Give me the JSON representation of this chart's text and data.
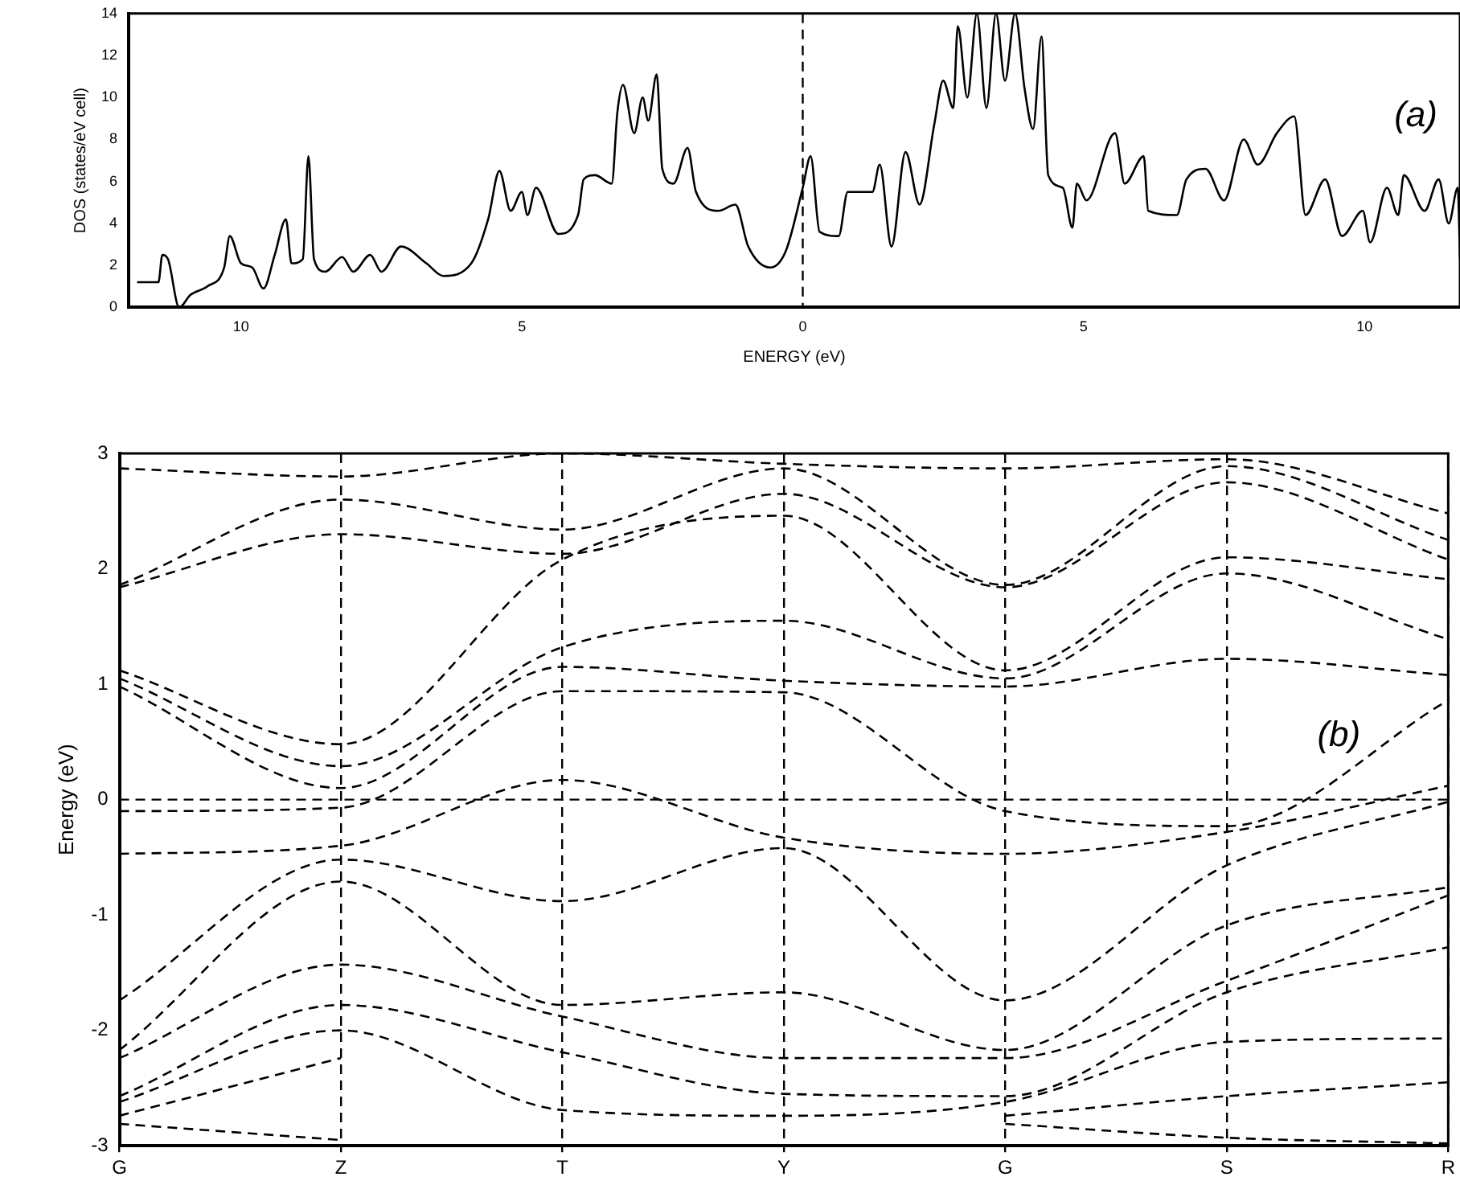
{
  "chart_data": [
    {
      "type": "line",
      "xlabel": "ENERGY (eV)",
      "ylabel": "DOS (states/eV cell)",
      "annotations": [
        "(a)"
      ],
      "xlim": [
        -12,
        11.7
      ],
      "xticks": [
        {
          "value": -10,
          "label": "10"
        },
        {
          "value": -5,
          "label": "5"
        },
        0,
        5,
        10
      ],
      "ylim": [
        0,
        14
      ],
      "yticks": [
        0,
        2,
        4,
        6,
        8,
        10,
        12,
        14
      ],
      "legend": false,
      "marker": "none",
      "line_style": "solid",
      "ref_lines": [
        {
          "axis": "x",
          "value": 0,
          "line_style": "dashed",
          "color": "#000000"
        }
      ],
      "series": [
        {
          "color": "#000000",
          "x": [
            -11.85,
            -11.47,
            -11.4,
            -11.3,
            -11.1,
            -10.9,
            -10.6,
            -10.3,
            -10.2,
            -10.0,
            -9.8,
            -9.6,
            -9.4,
            -9.2,
            -9.1,
            -8.9,
            -8.8,
            -8.7,
            -8.5,
            -8.2,
            -8.0,
            -7.7,
            -7.5,
            -7.15,
            -6.7,
            -6.4,
            -5.9,
            -5.6,
            -5.4,
            -5.2,
            -5.0,
            -4.9,
            -4.75,
            -4.35,
            -4.0,
            -3.9,
            -3.7,
            -3.4,
            -3.3,
            -3.2,
            -3.0,
            -2.85,
            -2.75,
            -2.6,
            -2.5,
            -2.3,
            -2.05,
            -1.9,
            -1.5,
            -1.2,
            -0.97,
            -0.58,
            -0.3,
            0,
            0.14,
            0.3,
            0.64,
            0.8,
            1.24,
            1.37,
            1.58,
            1.83,
            2.08,
            2.34,
            2.5,
            2.68,
            2.76,
            2.93,
            3.1,
            3.27,
            3.44,
            3.6,
            3.78,
            3.95,
            4.1,
            4.25,
            4.37,
            4.63,
            4.8,
            4.88,
            5.05,
            5.56,
            5.73,
            6.07,
            6.15,
            6.66,
            6.83,
            7.17,
            7.5,
            7.85,
            8.1,
            8.44,
            8.75,
            8.95,
            9.3,
            9.6,
            9.97,
            10.1,
            10.4,
            10.6,
            10.7,
            11.07,
            11.32,
            11.5,
            11.66,
            11.7
          ],
          "values": [
            1.2,
            1.2,
            2.5,
            2.3,
            0,
            0.6,
            1.0,
            1.9,
            3.4,
            2.1,
            1.9,
            0.9,
            2.5,
            4.2,
            2.1,
            2.3,
            7.2,
            2.3,
            1.7,
            2.4,
            1.7,
            2.5,
            1.7,
            2.9,
            2.1,
            1.5,
            2.1,
            4.2,
            6.5,
            4.6,
            5.5,
            4.4,
            5.7,
            3.5,
            4.4,
            6.1,
            6.3,
            5.9,
            9.3,
            10.6,
            8.3,
            10.0,
            8.9,
            11.1,
            6.6,
            5.9,
            7.6,
            5.5,
            4.6,
            4.9,
            2.9,
            1.9,
            2.7,
            5.7,
            7.2,
            3.6,
            3.4,
            5.5,
            5.5,
            6.8,
            2.9,
            7.4,
            4.9,
            8.7,
            10.8,
            9.5,
            13.4,
            10.0,
            14,
            9.5,
            14,
            10.8,
            14,
            10.4,
            8.5,
            12.9,
            6.3,
            5.7,
            3.8,
            5.9,
            5.1,
            8.3,
            5.9,
            7.2,
            4.6,
            4.4,
            6.1,
            6.6,
            5.1,
            8.0,
            6.8,
            8.3,
            9.1,
            4.4,
            6.1,
            3.4,
            4.6,
            3.1,
            5.7,
            4.4,
            6.3,
            4.6,
            6.1,
            4.0,
            5.7,
            2.3
          ]
        }
      ]
    },
    {
      "type": "line",
      "ylabel": "Energy (eV)",
      "annotations": [
        "(b)"
      ],
      "categories": [
        "G",
        "Z",
        "T",
        "Y",
        "G",
        "S",
        "R"
      ],
      "ylim": [
        -3,
        3
      ],
      "yticks": [
        -3,
        -2,
        -1,
        0,
        1,
        2,
        3
      ],
      "grid": "x",
      "legend": false,
      "marker": "none",
      "line_style": "dashed",
      "ref_lines": [
        {
          "axis": "y",
          "value": 0,
          "line_style": "dashed",
          "color": "#000000"
        }
      ],
      "series": [
        {
          "color": "#000000",
          "values": [
            -2.81,
            -2.95,
            null,
            null,
            -2.81,
            -2.93,
            -2.98
          ]
        },
        {
          "color": "#000000",
          "values": [
            -2.74,
            -2.24,
            null,
            null,
            -2.74,
            -2.57,
            -2.45
          ]
        },
        {
          "color": "#000000",
          "values": [
            -2.62,
            -2.0,
            -2.69,
            -2.74,
            -2.62,
            -2.1,
            -2.07
          ]
        },
        {
          "color": "#000000",
          "values": [
            -2.57,
            -1.78,
            -2.19,
            -2.55,
            -2.57,
            -1.67,
            -1.28
          ]
        },
        {
          "color": "#000000",
          "values": [
            -2.24,
            -1.43,
            -1.88,
            -2.24,
            -2.24,
            -1.57,
            -0.83
          ]
        },
        {
          "color": "#000000",
          "values": [
            -2.17,
            -0.71,
            -1.78,
            -1.67,
            -2.17,
            -1.09,
            -0.76
          ]
        },
        {
          "color": "#000000",
          "values": [
            -1.74,
            -0.52,
            -0.88,
            -0.42,
            -1.74,
            -0.57,
            -0.02
          ]
        },
        {
          "color": "#000000",
          "values": [
            -0.47,
            -0.4,
            0.17,
            -0.33,
            -0.47,
            -0.28,
            0.12
          ]
        },
        {
          "color": "#000000",
          "values": [
            -0.1,
            -0.07,
            0.94,
            0.93,
            -0.1,
            -0.23,
            0.86
          ]
        },
        {
          "color": "#000000",
          "values": [
            0.98,
            0.1,
            1.15,
            1.03,
            0.98,
            1.22,
            1.08
          ]
        },
        {
          "color": "#000000",
          "values": [
            1.05,
            0.29,
            1.32,
            1.55,
            1.05,
            1.96,
            1.39
          ]
        },
        {
          "color": "#000000",
          "values": [
            1.12,
            0.48,
            2.08,
            2.46,
            1.12,
            2.1,
            1.91
          ]
        },
        {
          "color": "#000000",
          "values": [
            1.84,
            2.3,
            2.13,
            2.65,
            1.84,
            2.75,
            2.08
          ]
        },
        {
          "color": "#000000",
          "values": [
            1.86,
            2.6,
            2.34,
            2.87,
            1.86,
            2.89,
            2.25
          ]
        },
        {
          "color": "#000000",
          "values": [
            2.87,
            2.8,
            3.0,
            2.91,
            2.87,
            2.95,
            2.48
          ]
        }
      ]
    }
  ]
}
